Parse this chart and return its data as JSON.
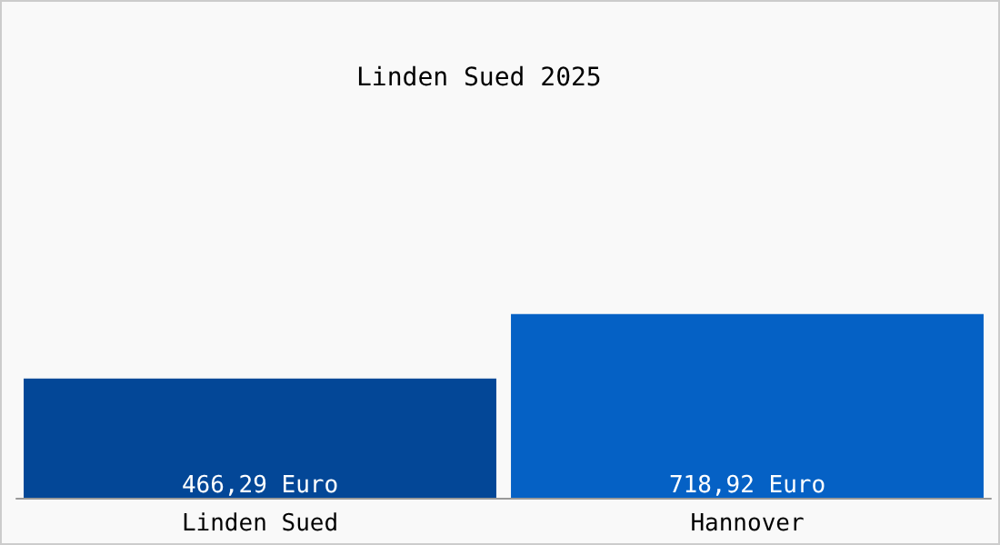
{
  "chart_data": {
    "type": "bar",
    "title": "Linden Sued 2025",
    "categories": [
      "Linden Sued",
      "Hannover"
    ],
    "values": [
      466.29,
      718.92
    ],
    "colors": [
      "#034797",
      "#0561c5"
    ],
    "value_labels": [
      "466,29 Euro",
      "718,92 Euro"
    ]
  }
}
